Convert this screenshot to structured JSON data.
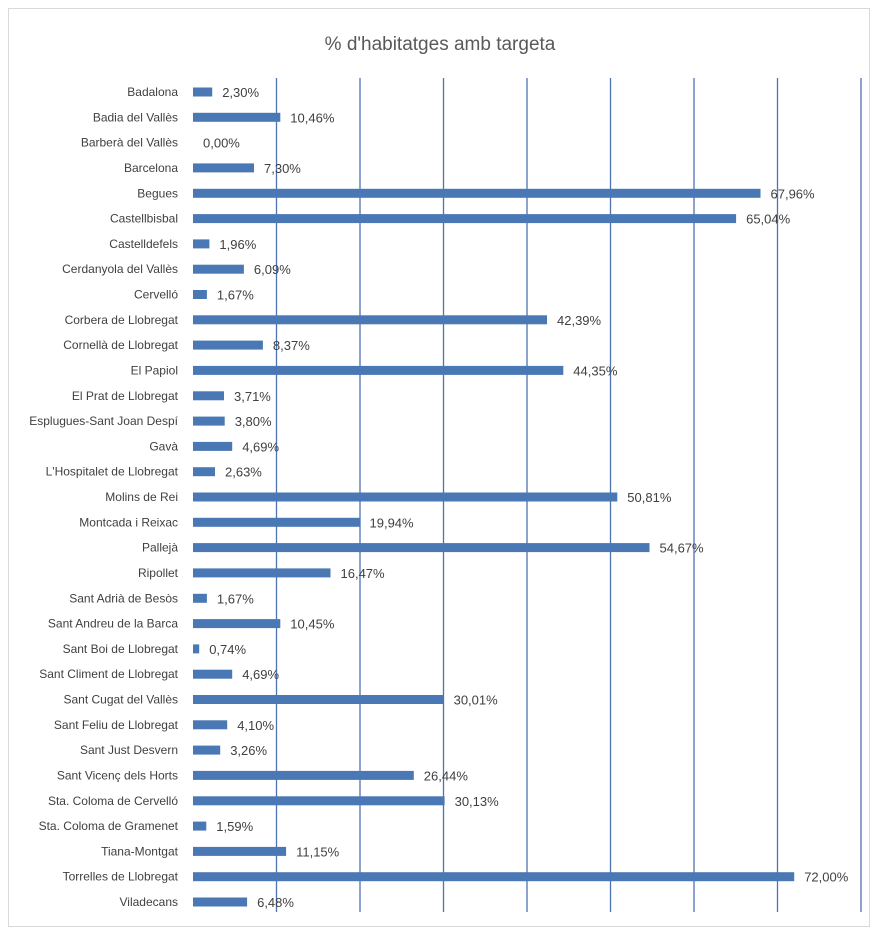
{
  "chart_data": {
    "type": "bar",
    "orientation": "horizontal",
    "title": "% d'habitatges amb targeta",
    "categories": [
      "Badalona",
      "Badia del Vallès",
      "Barberà del Vallès",
      "Barcelona",
      "Begues",
      "Castellbisbal",
      "Castelldefels",
      "Cerdanyola del Vallès",
      "Cervelló",
      "Corbera de Llobregat",
      "Cornellà de Llobregat",
      "El Papiol",
      "El Prat de Llobregat",
      "Esplugues-Sant Joan Despí",
      "Gavà",
      "L'Hospitalet de Llobregat",
      "Molins de Rei",
      "Montcada i Reixac",
      "Pallejà",
      "Ripollet",
      "Sant Adrià de Besòs",
      "Sant Andreu de la Barca",
      "Sant Boi de Llobregat",
      "Sant Climent de Llobregat",
      "Sant Cugat del Vallès",
      "Sant Feliu de Llobregat",
      "Sant Just Desvern",
      "Sant Vicenç dels Horts",
      "Sta. Coloma de Cervelló",
      "Sta. Coloma de Gramenet",
      "Tiana-Montgat",
      "Torrelles de Llobregat",
      "Viladecans"
    ],
    "values": [
      2.3,
      10.46,
      0.0,
      7.3,
      67.96,
      65.04,
      1.96,
      6.09,
      1.67,
      42.39,
      8.37,
      44.35,
      3.71,
      3.8,
      4.69,
      2.63,
      50.81,
      19.94,
      54.67,
      16.47,
      1.67,
      10.45,
      0.74,
      4.69,
      30.01,
      4.1,
      3.26,
      26.44,
      30.13,
      1.59,
      11.15,
      72.0,
      6.48
    ],
    "value_labels": [
      "2,30%",
      "10,46%",
      "0,00%",
      "7,30%",
      "67,96%",
      "65,04%",
      "1,96%",
      "6,09%",
      "1,67%",
      "42,39%",
      "8,37%",
      "44,35%",
      "3,71%",
      "3,80%",
      "4,69%",
      "2,63%",
      "50,81%",
      "19,94%",
      "54,67%",
      "16,47%",
      "1,67%",
      "10,45%",
      "0,74%",
      "4,69%",
      "30,01%",
      "4,10%",
      "3,26%",
      "26,44%",
      "30,13%",
      "1,59%",
      "11,15%",
      "72,00%",
      "6,48%"
    ],
    "xlim": [
      0,
      80
    ],
    "grid_step": 10,
    "grid": "vertical",
    "legend": "none",
    "colors": {
      "bar": "#4a78b4",
      "grid": "#4f74b2",
      "frame": "#d9d9d9",
      "text": "#404040"
    }
  }
}
